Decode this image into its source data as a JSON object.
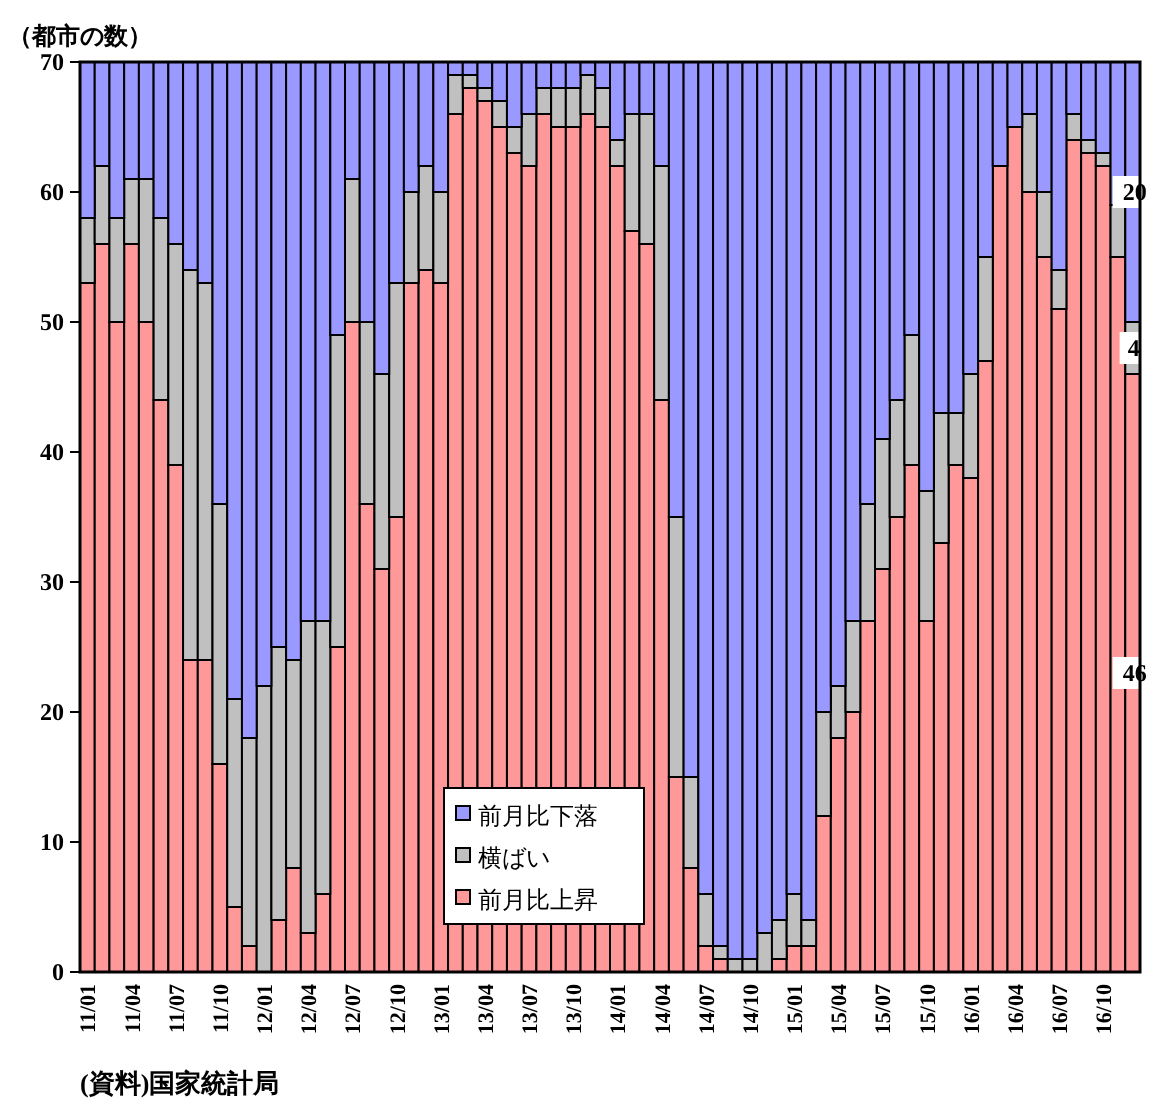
{
  "chart_data": {
    "type": "bar",
    "stacked": true,
    "ylabel": "（都市の数）",
    "categories": [
      "11/01",
      null,
      null,
      "11/04",
      null,
      null,
      "11/07",
      null,
      null,
      "11/10",
      null,
      null,
      "12/01",
      null,
      null,
      "12/04",
      null,
      null,
      "12/07",
      null,
      null,
      "12/10",
      null,
      null,
      "13/01",
      null,
      null,
      "13/04",
      null,
      null,
      "13/07",
      null,
      null,
      "13/10",
      null,
      null,
      "14/01",
      null,
      null,
      "14/04",
      null,
      null,
      "14/07",
      null,
      null,
      "14/10",
      null,
      null,
      "15/01",
      null,
      null,
      "15/04",
      null,
      null,
      "15/07",
      null,
      null,
      "15/10",
      null,
      null,
      "16/01",
      null,
      null,
      "16/04",
      null,
      null,
      "16/07",
      null,
      null,
      "16/10",
      null,
      null
    ],
    "series": [
      {
        "name": "前月比上昇",
        "color": "#ff9999",
        "values": [
          53,
          56,
          50,
          56,
          50,
          44,
          39,
          24,
          24,
          16,
          5,
          2,
          0,
          4,
          8,
          3,
          6,
          25,
          50,
          36,
          31,
          35,
          53,
          54,
          53,
          66,
          68,
          67,
          65,
          63,
          62,
          66,
          65,
          65,
          66,
          65,
          62,
          57,
          56,
          44,
          15,
          8,
          2,
          1,
          0,
          0,
          0,
          1,
          2,
          2,
          12,
          18,
          20,
          27,
          31,
          35,
          39,
          27,
          33,
          39,
          38,
          47,
          62,
          65,
          60,
          55,
          51,
          64,
          63,
          62,
          55,
          46
        ],
        "value_labels": [
          null,
          null,
          null,
          null,
          null,
          null,
          null,
          null,
          null,
          null,
          null,
          null,
          null,
          null,
          null,
          null,
          null,
          null,
          null,
          null,
          null,
          null,
          null,
          null,
          null,
          null,
          null,
          null,
          null,
          null,
          null,
          null,
          null,
          null,
          null,
          null,
          null,
          null,
          null,
          null,
          null,
          null,
          null,
          null,
          null,
          null,
          null,
          null,
          null,
          null,
          null,
          null,
          null,
          null,
          null,
          null,
          null,
          null,
          null,
          null,
          null,
          null,
          null,
          null,
          null,
          null,
          null,
          null,
          null,
          null,
          null,
          "46"
        ]
      },
      {
        "name": "横ばい",
        "color": "#c0c0c0",
        "values": [
          5,
          6,
          8,
          5,
          11,
          14,
          17,
          30,
          29,
          20,
          16,
          16,
          22,
          21,
          16,
          24,
          21,
          24,
          11,
          14,
          15,
          18,
          7,
          8,
          7,
          3,
          1,
          1,
          2,
          2,
          4,
          2,
          3,
          3,
          3,
          3,
          2,
          9,
          10,
          18,
          20,
          7,
          4,
          1,
          1,
          1,
          3,
          3,
          4,
          2,
          8,
          4,
          7,
          9,
          10,
          9,
          10,
          10,
          10,
          4,
          8,
          8,
          0,
          0,
          6,
          5,
          3,
          2,
          1,
          1,
          4,
          4
        ],
        "value_labels": [
          null,
          null,
          null,
          null,
          null,
          null,
          null,
          null,
          null,
          null,
          null,
          null,
          null,
          null,
          null,
          null,
          null,
          null,
          null,
          null,
          null,
          null,
          null,
          null,
          null,
          null,
          null,
          null,
          null,
          null,
          null,
          null,
          null,
          null,
          null,
          null,
          null,
          null,
          null,
          null,
          null,
          null,
          null,
          null,
          null,
          null,
          null,
          null,
          null,
          null,
          null,
          null,
          null,
          null,
          null,
          null,
          null,
          null,
          null,
          null,
          null,
          null,
          null,
          null,
          null,
          null,
          null,
          null,
          null,
          null,
          null,
          "4"
        ]
      },
      {
        "name": "前月比下落",
        "color": "#9999ff",
        "values": [
          12,
          8,
          12,
          9,
          9,
          12,
          14,
          16,
          17,
          34,
          49,
          52,
          48,
          45,
          46,
          43,
          43,
          21,
          9,
          20,
          24,
          17,
          10,
          8,
          10,
          1,
          1,
          2,
          3,
          5,
          4,
          2,
          2,
          2,
          1,
          2,
          6,
          4,
          4,
          8,
          35,
          55,
          64,
          68,
          69,
          69,
          67,
          66,
          64,
          66,
          50,
          48,
          43,
          34,
          29,
          26,
          21,
          33,
          27,
          27,
          24,
          15,
          8,
          5,
          4,
          10,
          16,
          4,
          6,
          7,
          11,
          20
        ],
        "value_labels": [
          null,
          null,
          null,
          null,
          null,
          null,
          null,
          null,
          null,
          null,
          null,
          null,
          null,
          null,
          null,
          null,
          null,
          null,
          null,
          null,
          null,
          null,
          null,
          null,
          null,
          null,
          null,
          null,
          null,
          null,
          null,
          null,
          null,
          null,
          null,
          null,
          null,
          null,
          null,
          null,
          null,
          null,
          null,
          null,
          null,
          null,
          null,
          null,
          null,
          null,
          null,
          null,
          null,
          null,
          null,
          null,
          null,
          null,
          null,
          null,
          null,
          null,
          null,
          null,
          null,
          null,
          null,
          null,
          null,
          null,
          null,
          "20"
        ]
      }
    ],
    "ylim": [
      0,
      70
    ],
    "yticks": [
      0,
      10,
      20,
      30,
      40,
      50,
      60,
      70
    ],
    "legend": "bottom",
    "annotations": [
      "(資料)国家統計局"
    ]
  }
}
